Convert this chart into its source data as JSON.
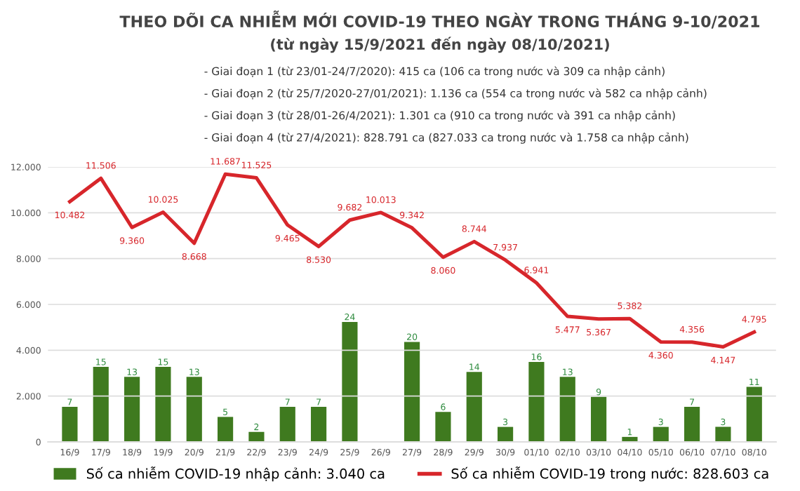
{
  "chart_data": {
    "type": "bar",
    "title": "THEO DÕI CA NHIỄM MỚI COVID-19 THEO NGÀY TRONG THÁNG 9-10/2021",
    "subtitle": "(từ ngày 15/9/2021 đến ngày 08/10/2021)",
    "annotations": [
      "- Giai đoạn 1 (từ 23/01-24/7/2020): 415 ca (106 ca trong nước và 309 ca nhập cảnh)",
      "- Giai đoạn 2 (từ 25/7/2020-27/01/2021): 1.136 ca (554 ca trong nước và 582 ca nhập cảnh)",
      "- Giai đoạn 3 (từ 28/01-26/4/2021): 1.301 ca (910 ca trong nước và 391 ca nhập cảnh)",
      "- Giai đoạn 4 (từ 27/4/2021): 828.791 ca (827.033 ca trong nước và 1.758 ca nhập cảnh)"
    ],
    "categories": [
      "16/9",
      "17/9",
      "18/9",
      "19/9",
      "20/9",
      "21/9",
      "22/9",
      "23/9",
      "24/9",
      "25/9",
      "26/9",
      "27/9",
      "28/9",
      "29/9",
      "30/9",
      "01/10",
      "02/10",
      "03/10",
      "04/10",
      "05/10",
      "06/10",
      "07/10",
      "08/10"
    ],
    "series": [
      {
        "name": "Số ca nhiễm COVID-19 nhập cảnh: 3.040 ca",
        "axis": "y2",
        "color": "#3f7a1f",
        "values": [
          7,
          15,
          13,
          15,
          13,
          5,
          2,
          7,
          7,
          24,
          null,
          20,
          6,
          14,
          3,
          16,
          13,
          9,
          1,
          3,
          7,
          3,
          11
        ]
      },
      {
        "name": "Số ca nhiễm COVID-19 trong nước: 828.603 ca",
        "type": "line",
        "color": "#d7262b",
        "values": [
          10482,
          11506,
          9360,
          10025,
          8668,
          11687,
          11525,
          9465,
          8530,
          9682,
          10013,
          9342,
          8060,
          8744,
          7937,
          6941,
          5477,
          5367,
          5382,
          4360,
          4356,
          4147,
          4795
        ],
        "value_labels": [
          "10.482",
          "11.506",
          "9.360",
          "10.025",
          "8.668",
          "11.687",
          "11.525",
          "9.465",
          "8.530",
          "9.682",
          "10.013",
          "9.342",
          "8.060",
          "8.744",
          "7.937",
          "6.941",
          "5.477",
          "5.367",
          "5.382",
          "4.360",
          "4.356",
          "4.147",
          "4.795"
        ]
      }
    ],
    "y2lim": [
      0,
      55
    ],
    "ylim": [
      0,
      12000
    ],
    "yticks": [
      0,
      {
        "value": 2000,
        "label": "2.000"
      },
      {
        "value": 4000,
        "label": "4.000"
      },
      {
        "value": 6000,
        "label": "6.000"
      },
      {
        "value": 8000,
        "label": "8.000"
      },
      {
        "value": 10000,
        "label": "10.000"
      },
      {
        "value": 12000,
        "label": "12.000"
      }
    ],
    "grid": "y",
    "data_labels": true,
    "legend": "bottom"
  }
}
